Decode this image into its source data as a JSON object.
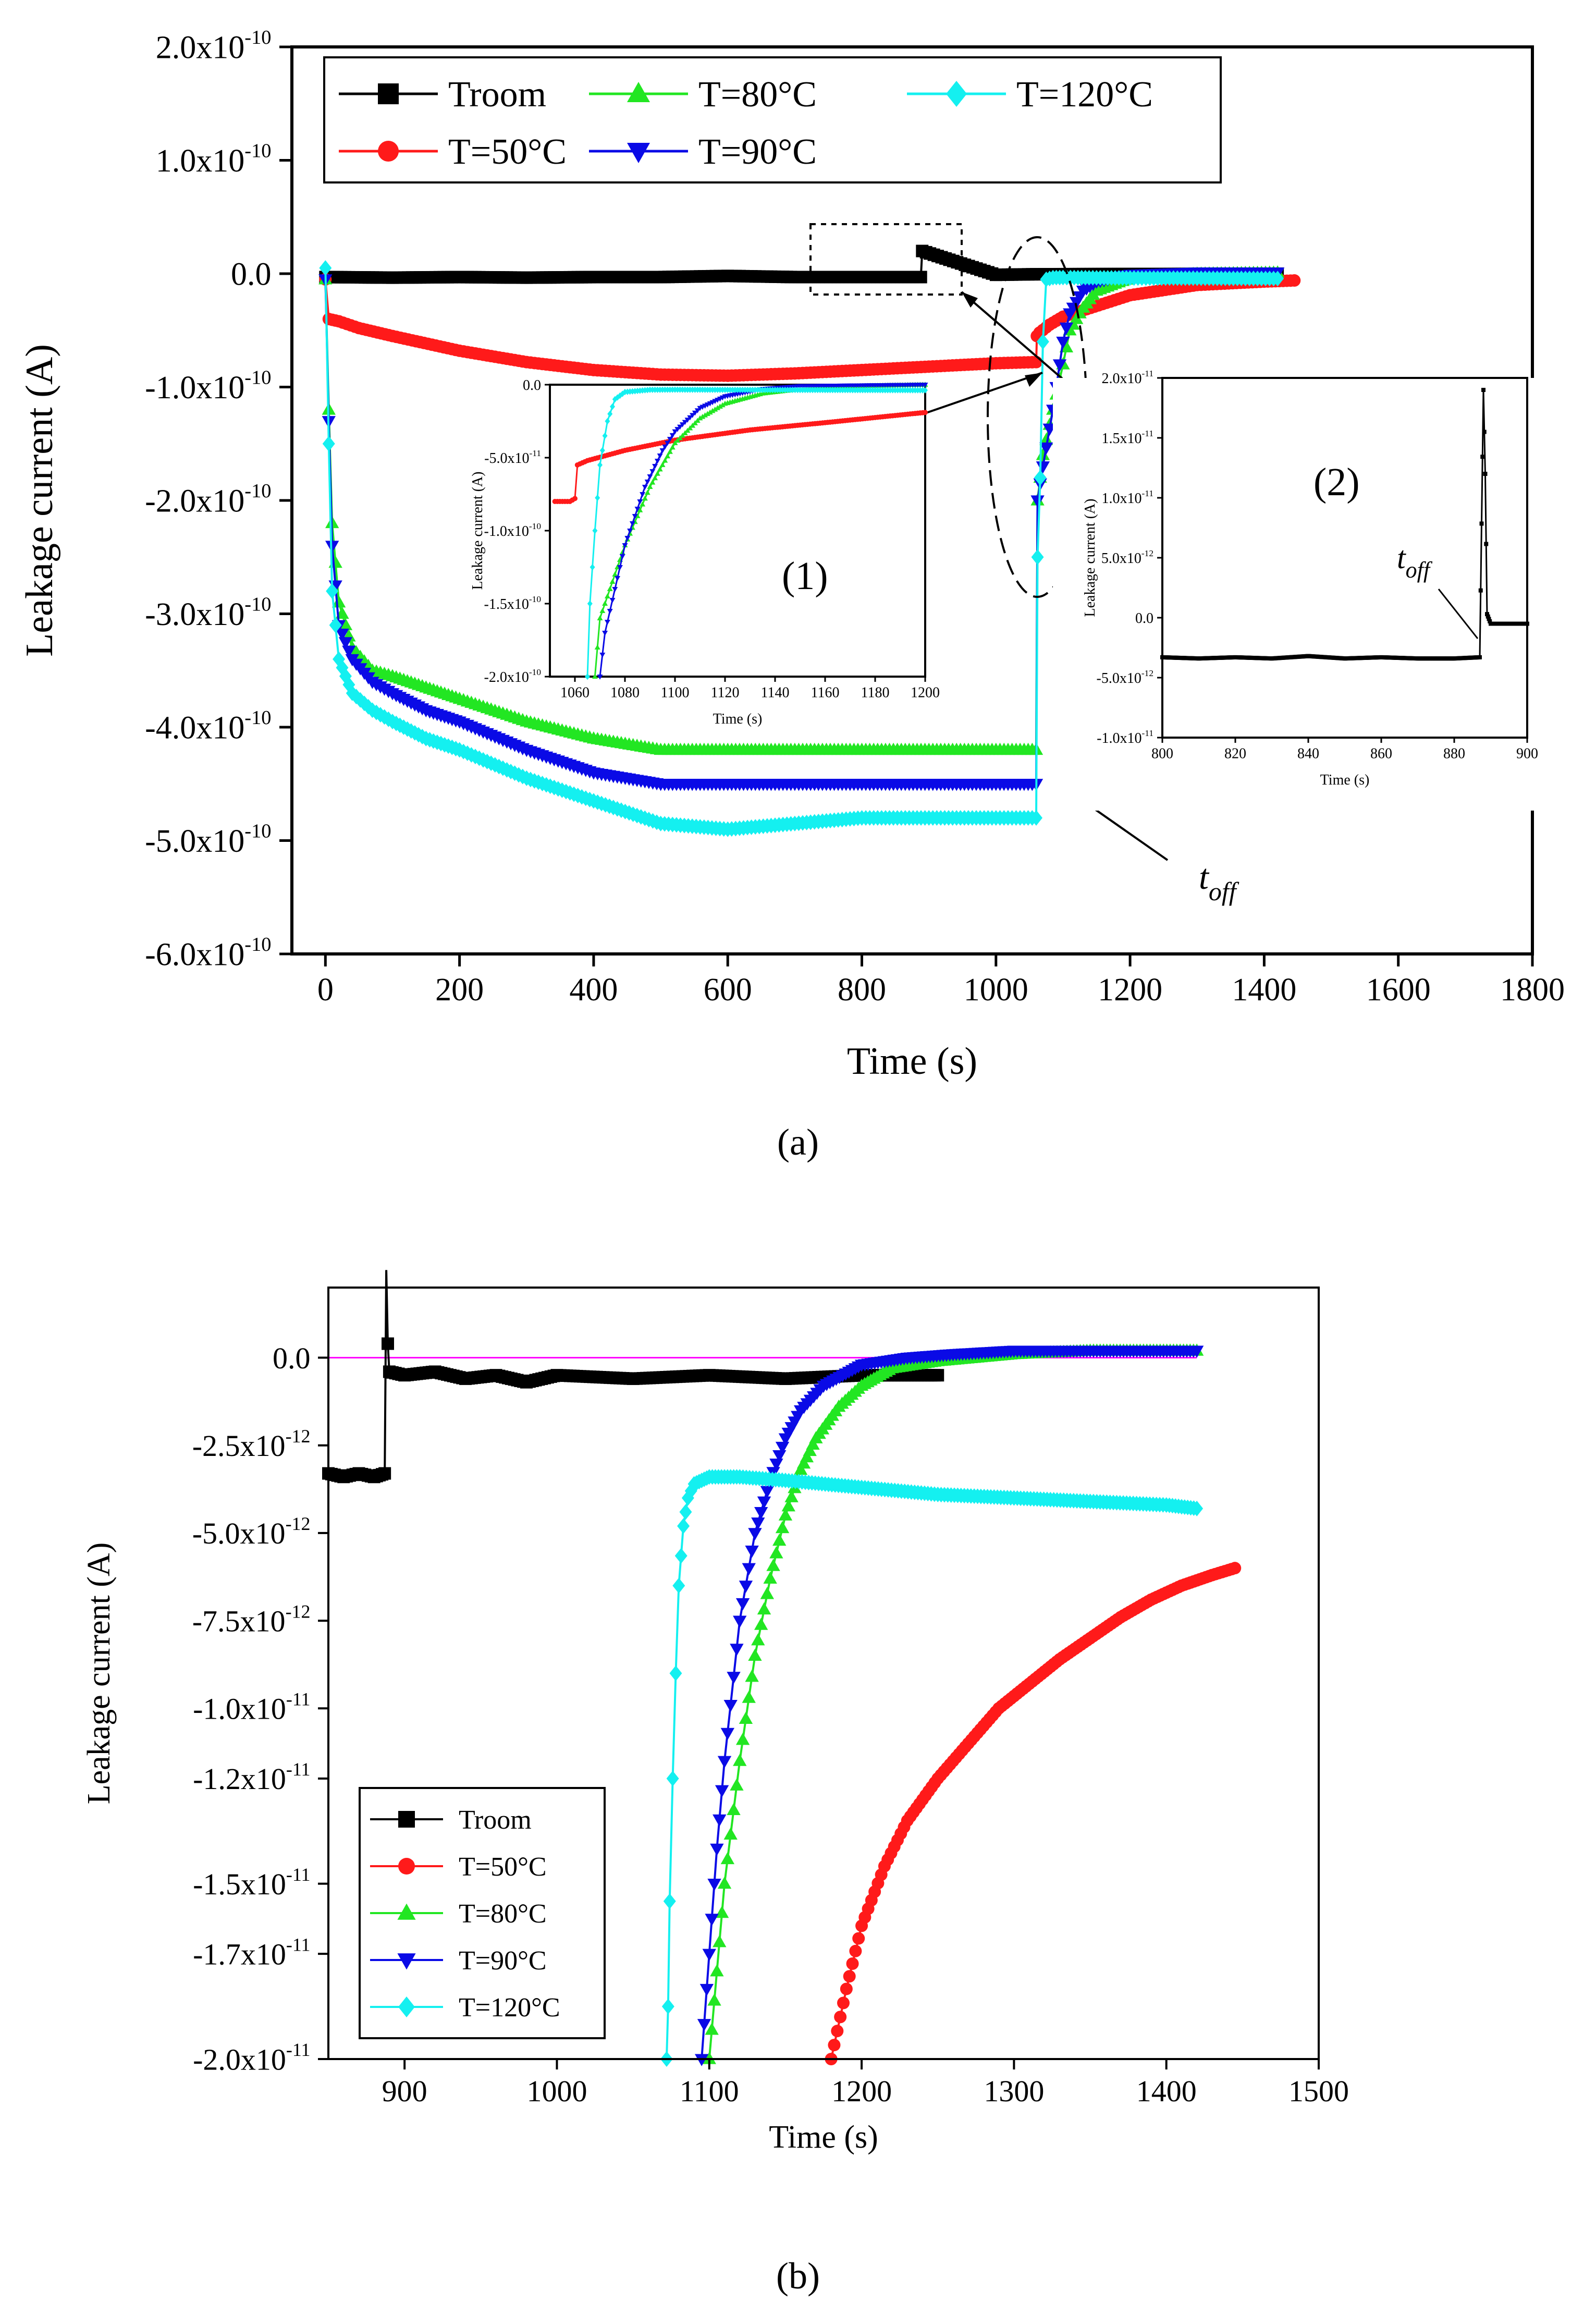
{
  "figure": {
    "panel_a_label": "(a)",
    "panel_b_label": "(b)"
  },
  "colors": {
    "troom": "#000000",
    "t50": "#ff1a1a",
    "t80": "#22e622",
    "t90": "#0a0ae6",
    "t120": "#14f0f0",
    "zero_line": "#ff00ff"
  },
  "chart_data": [
    {
      "id": "a",
      "type": "line",
      "title": "",
      "xlabel": "Time (s)",
      "ylabel": "Leakage current (A)",
      "xlim": [
        -50,
        1800
      ],
      "ylim": [
        -6e-10,
        2e-10
      ],
      "x_ticks": [
        0,
        200,
        400,
        600,
        800,
        1000,
        1200,
        1400,
        1600,
        1800
      ],
      "x_tick_labels": [
        "0",
        "200",
        "400",
        "600",
        "800",
        "1000",
        "1200",
        "1400",
        "1600",
        "1800"
      ],
      "y_ticks": [
        2e-10,
        1e-10,
        0,
        -1e-10,
        -2e-10,
        -3e-10,
        -4e-10,
        -5e-10,
        -6e-10
      ],
      "y_tick_labels": [
        {
          "m": "2.0x10",
          "e": "-10"
        },
        {
          "m": "1.0x10",
          "e": "-10"
        },
        {
          "m": "0.0",
          "e": ""
        },
        {
          "m": "-1.0x10",
          "e": "-10"
        },
        {
          "m": "-2.0x10",
          "e": "-10"
        },
        {
          "m": "-3.0x10",
          "e": "-10"
        },
        {
          "m": "-4.0x10",
          "e": "-10"
        },
        {
          "m": "-5.0x10",
          "e": "-10"
        },
        {
          "m": "-6.0x10",
          "e": "-10"
        }
      ],
      "legend_position": "top",
      "series": [
        {
          "name": "Troom",
          "key": "troom",
          "marker": "square",
          "x": [
            0,
            100,
            200,
            300,
            400,
            500,
            600,
            700,
            800,
            888,
            890,
            1000,
            1060,
            1200,
            1420
          ],
          "y": [
            -3e-12,
            -3.5e-12,
            -3e-12,
            -3.5e-12,
            -3e-12,
            -3e-12,
            -2e-12,
            -3e-12,
            -3e-12,
            -3e-12,
            2e-11,
            -1e-12,
            -5e-13,
            -3e-13,
            0
          ]
        },
        {
          "name": "T=50°C",
          "key": "t50",
          "marker": "circle",
          "x": [
            0,
            5,
            20,
            50,
            100,
            200,
            300,
            400,
            500,
            600,
            700,
            800,
            900,
            1000,
            1060,
            1061,
            1065,
            1080,
            1100,
            1200,
            1300,
            1400,
            1445
          ],
          "y": [
            -5e-12,
            -4e-11,
            -4.2e-11,
            -4.8e-11,
            -5.5e-11,
            -6.8e-11,
            -7.8e-11,
            -8.5e-11,
            -8.9e-11,
            -9e-11,
            -8.8e-11,
            -8.5e-11,
            -8.2e-11,
            -7.9e-11,
            -7.8e-11,
            -5.5e-11,
            -5.2e-11,
            -4.5e-11,
            -3.8e-11,
            -1.9e-11,
            -1e-11,
            -7e-12,
            -6e-12
          ]
        },
        {
          "name": "T=80°C",
          "key": "t80",
          "marker": "triangle-up",
          "x": [
            0,
            5,
            10,
            20,
            40,
            70,
            100,
            150,
            200,
            300,
            400,
            500,
            600,
            700,
            800,
            900,
            1000,
            1060,
            1062,
            1070,
            1085,
            1100,
            1110,
            1130,
            1150,
            1200,
            1300,
            1420
          ],
          "y": [
            -5e-12,
            -1.2e-10,
            -2.2e-10,
            -2.9e-10,
            -3.3e-10,
            -3.5e-10,
            -3.55e-10,
            -3.65e-10,
            -3.75e-10,
            -3.95e-10,
            -4.1e-10,
            -4.2e-10,
            -4.2e-10,
            -4.2e-10,
            -4.2e-10,
            -4.2e-10,
            -4.2e-10,
            -4.2e-10,
            -2e-10,
            -1.6e-10,
            -1.2e-10,
            -8e-11,
            -5e-11,
            -3e-11,
            -1.5e-11,
            -4e-12,
            0,
            1e-12
          ]
        },
        {
          "name": "T=90°C",
          "key": "t90",
          "marker": "triangle-down",
          "x": [
            0,
            5,
            10,
            20,
            40,
            70,
            100,
            150,
            200,
            300,
            400,
            500,
            600,
            700,
            800,
            900,
            1000,
            1060,
            1062,
            1070,
            1085,
            1100,
            1110,
            1130,
            1150,
            1200,
            1300,
            1420
          ],
          "y": [
            -5e-12,
            -1.3e-10,
            -2.4e-10,
            -3.1e-10,
            -3.4e-10,
            -3.6e-10,
            -3.7e-10,
            -3.85e-10,
            -3.95e-10,
            -4.2e-10,
            -4.4e-10,
            -4.5e-10,
            -4.5e-10,
            -4.5e-10,
            -4.5e-10,
            -4.5e-10,
            -4.5e-10,
            -4.5e-10,
            -2e-10,
            -1.7e-10,
            -1.2e-10,
            -6e-11,
            -3.5e-11,
            -1.5e-11,
            -7e-12,
            -1e-12,
            1e-12,
            1e-12
          ]
        },
        {
          "name": "T=120°C",
          "key": "t120",
          "marker": "diamond",
          "x": [
            0,
            5,
            10,
            20,
            40,
            70,
            100,
            150,
            200,
            300,
            400,
            500,
            600,
            700,
            800,
            900,
            1000,
            1060,
            1062,
            1066,
            1070,
            1075,
            1085,
            1100,
            1150,
            1200,
            1300,
            1420
          ],
          "y": [
            5e-12,
            -1.5e-10,
            -2.8e-10,
            -3.4e-10,
            -3.7e-10,
            -3.85e-10,
            -3.95e-10,
            -4.1e-10,
            -4.2e-10,
            -4.45e-10,
            -4.65e-10,
            -4.85e-10,
            -4.9e-10,
            -4.85e-10,
            -4.8e-10,
            -4.8e-10,
            -4.8e-10,
            -4.8e-10,
            -2.5e-10,
            -1.8e-10,
            -6e-11,
            -5e-12,
            -3.5e-12,
            -3.4e-12,
            -3.6e-12,
            -3.8e-12,
            -4e-12,
            -4.3e-12
          ]
        }
      ],
      "annotations": {
        "toff_main": "t",
        "toff_sub": "off",
        "inset1_label": "(1)",
        "inset2_label": "(2)"
      },
      "insets": [
        {
          "id": "inset1",
          "xlabel": "Time (s)",
          "ylabel": "Leakage current (A)",
          "xlim": [
            1050,
            1200
          ],
          "ylim": [
            -2e-10,
            0
          ],
          "x_ticks": [
            1060,
            1080,
            1100,
            1120,
            1140,
            1160,
            1180,
            1200
          ],
          "x_tick_labels": [
            "1060",
            "1080",
            "1100",
            "1120",
            "1140",
            "1160",
            "1180",
            "1200"
          ],
          "y_ticks": [
            0,
            -5e-11,
            -1e-10,
            -1.5e-10,
            -2e-10
          ],
          "y_tick_labels": [
            {
              "m": "0.0",
              "e": ""
            },
            {
              "m": "-5.0x10",
              "e": "-11"
            },
            {
              "m": "-1.0x10",
              "e": "-10"
            },
            {
              "m": "-1.5x10",
              "e": "-10"
            },
            {
              "m": "-2.0x10",
              "e": "-10"
            }
          ],
          "series": [
            {
              "key": "t50",
              "x": [
                1052,
                1058,
                1060,
                1061,
                1065,
                1080,
                1100,
                1130,
                1160,
                1200
              ],
              "y": [
                -8e-11,
                -8e-11,
                -7.8e-11,
                -5.5e-11,
                -5.2e-11,
                -4.5e-11,
                -3.8e-11,
                -3.1e-11,
                -2.6e-11,
                -1.9e-11
              ]
            },
            {
              "key": "t80",
              "x": [
                1068,
                1070,
                1075,
                1080,
                1090,
                1100,
                1110,
                1120,
                1135,
                1150,
                1170,
                1200
              ],
              "y": [
                -2e-10,
                -1.6e-10,
                -1.35e-10,
                -1.1e-10,
                -7e-11,
                -4e-11,
                -2.3e-11,
                -1.3e-11,
                -6e-12,
                -3e-12,
                -1e-12,
                0
              ]
            },
            {
              "key": "t90",
              "x": [
                1070,
                1072,
                1076,
                1080,
                1088,
                1095,
                1100,
                1110,
                1120,
                1135,
                1150,
                1200
              ],
              "y": [
                -2e-10,
                -1.7e-10,
                -1.4e-10,
                -1.1e-10,
                -7e-11,
                -4.5e-11,
                -3.2e-11,
                -1.6e-11,
                -8e-12,
                -3e-12,
                -1e-12,
                0
              ]
            },
            {
              "key": "t120",
              "x": [
                1065,
                1066,
                1068,
                1070,
                1073,
                1076,
                1080,
                1090,
                1100,
                1120,
                1150,
                1200
              ],
              "y": [
                -2e-10,
                -1.5e-10,
                -1e-10,
                -5.5e-11,
                -2.5e-11,
                -1e-11,
                -5e-12,
                -3.5e-12,
                -3.4e-12,
                -3.5e-12,
                -3.6e-12,
                -3.8e-12
              ]
            }
          ]
        },
        {
          "id": "inset2",
          "xlabel": "Time (s)",
          "ylabel": "Leakage current (A)",
          "xlim": [
            800,
            900
          ],
          "ylim": [
            -1e-11,
            2e-11
          ],
          "x_ticks": [
            800,
            820,
            840,
            860,
            880,
            900
          ],
          "x_tick_labels": [
            "800",
            "820",
            "840",
            "860",
            "880",
            "900"
          ],
          "y_ticks": [
            2e-11,
            1.5e-11,
            1e-11,
            5e-12,
            0,
            -5e-12,
            -1e-11
          ],
          "y_tick_labels": [
            {
              "m": "2.0x10",
              "e": "-11"
            },
            {
              "m": "1.5x10",
              "e": "-11"
            },
            {
              "m": "1.0x10",
              "e": "-11"
            },
            {
              "m": "5.0x10",
              "e": "-12"
            },
            {
              "m": "0.0",
              "e": ""
            },
            {
              "m": "-5.0x10",
              "e": "-12"
            },
            {
              "m": "-1.0x10",
              "e": "-11"
            }
          ],
          "series": [
            {
              "key": "troom",
              "x": [
                800,
                810,
                820,
                830,
                840,
                850,
                860,
                870,
                880,
                887,
                888,
                888.5,
                889,
                890,
                895,
                900
              ],
              "y": [
                -3.3e-12,
                -3.4e-12,
                -3.3e-12,
                -3.4e-12,
                -3.2e-12,
                -3.4e-12,
                -3.3e-12,
                -3.4e-12,
                -3.4e-12,
                -3.3e-12,
                1.9e-11,
                1.2e-11,
                3e-13,
                -5e-13,
                -5e-13,
                -5e-13
              ]
            }
          ]
        }
      ]
    },
    {
      "id": "b",
      "type": "line",
      "title": "",
      "xlabel": "Time (s)",
      "ylabel": "Leakage current (A)",
      "xlim": [
        850,
        1500
      ],
      "ylim": [
        -2e-11,
        2e-12
      ],
      "x_ticks": [
        900,
        1000,
        1100,
        1200,
        1300,
        1400,
        1500
      ],
      "x_tick_labels": [
        "900",
        "1000",
        "1100",
        "1200",
        "1300",
        "1400",
        "1500"
      ],
      "y_ticks": [
        0,
        -2.5e-12,
        -5e-12,
        -7.5e-12,
        -1e-11,
        -1.2e-11,
        -1.5e-11,
        -1.7e-11,
        -2e-11
      ],
      "y_tick_labels": [
        {
          "m": "0.0",
          "e": ""
        },
        {
          "m": "-2.5x10",
          "e": "-12"
        },
        {
          "m": "-5.0x10",
          "e": "-12"
        },
        {
          "m": "-7.5x10",
          "e": "-12"
        },
        {
          "m": "-1.0x10",
          "e": "-11"
        },
        {
          "m": "-1.2x10",
          "e": "-11"
        },
        {
          "m": "-1.5x10",
          "e": "-11"
        },
        {
          "m": "-1.7x10",
          "e": "-11"
        },
        {
          "m": "-2.0x10",
          "e": "-11"
        }
      ],
      "legend_position": "bottom-left",
      "zero_line": true,
      "series": [
        {
          "name": "Troom",
          "key": "troom",
          "marker": "square",
          "x": [
            850,
            860,
            870,
            880,
            887,
            888,
            889,
            890,
            900,
            920,
            940,
            960,
            980,
            1000,
            1050,
            1100,
            1150,
            1200,
            1250
          ],
          "y": [
            -3.3e-12,
            -3.4e-12,
            -3.3e-12,
            -3.4e-12,
            -3.3e-12,
            2.5e-12,
            4e-13,
            -4e-13,
            -5e-13,
            -4e-13,
            -6e-13,
            -5e-13,
            -7e-13,
            -5e-13,
            -6e-13,
            -5e-13,
            -6e-13,
            -5e-13,
            -5e-13
          ]
        },
        {
          "name": "T=50°C",
          "key": "t50",
          "marker": "circle",
          "x": [
            1180,
            1190,
            1200,
            1215,
            1230,
            1250,
            1270,
            1290,
            1310,
            1330,
            1350,
            1370,
            1390,
            1410,
            1430,
            1445
          ],
          "y": [
            -2e-11,
            -1.8e-11,
            -1.62e-11,
            -1.45e-11,
            -1.32e-11,
            -1.2e-11,
            -1.1e-11,
            -1e-11,
            -9.3e-12,
            -8.6e-12,
            -8e-12,
            -7.4e-12,
            -6.9e-12,
            -6.5e-12,
            -6.2e-12,
            -6e-12
          ]
        },
        {
          "name": "T=80°C",
          "key": "t80",
          "marker": "triangle-up",
          "x": [
            1100,
            1105,
            1110,
            1120,
            1130,
            1140,
            1150,
            1160,
            1170,
            1185,
            1200,
            1220,
            1250,
            1300,
            1350,
            1420
          ],
          "y": [
            -2e-11,
            -1.75e-11,
            -1.5e-11,
            -1.15e-11,
            -8.5e-12,
            -6.3e-12,
            -4.5e-12,
            -3.2e-12,
            -2.3e-12,
            -1.4e-12,
            -8e-13,
            -3e-13,
            -1e-13,
            1e-13,
            2e-13,
            2e-13
          ]
        },
        {
          "name": "T=90°C",
          "key": "t90",
          "marker": "triangle-down",
          "x": [
            1095,
            1100,
            1105,
            1110,
            1120,
            1130,
            1140,
            1150,
            1160,
            1175,
            1200,
            1230,
            1260,
            1300,
            1350,
            1420
          ],
          "y": [
            -2e-11,
            -1.7e-11,
            -1.4e-11,
            -1.15e-11,
            -7.5e-12,
            -5e-12,
            -3.5e-12,
            -2.3e-12,
            -1.5e-12,
            -8e-13,
            -2e-13,
            0,
            1e-13,
            2e-13,
            2e-13,
            2e-13
          ]
        },
        {
          "name": "T=120°C",
          "key": "t120",
          "marker": "diamond",
          "x": [
            1072,
            1073,
            1074,
            1076,
            1078,
            1080,
            1083,
            1086,
            1090,
            1095,
            1100,
            1120,
            1150,
            1200,
            1250,
            1300,
            1350,
            1400,
            1420
          ],
          "y": [
            -2e-11,
            -1.85e-11,
            -1.55e-11,
            -1.2e-11,
            -9e-12,
            -6.5e-12,
            -4.8e-12,
            -4e-12,
            -3.6e-12,
            -3.5e-12,
            -3.4e-12,
            -3.4e-12,
            -3.5e-12,
            -3.7e-12,
            -3.9e-12,
            -4e-12,
            -4.1e-12,
            -4.2e-12,
            -4.3e-12
          ]
        }
      ]
    }
  ]
}
